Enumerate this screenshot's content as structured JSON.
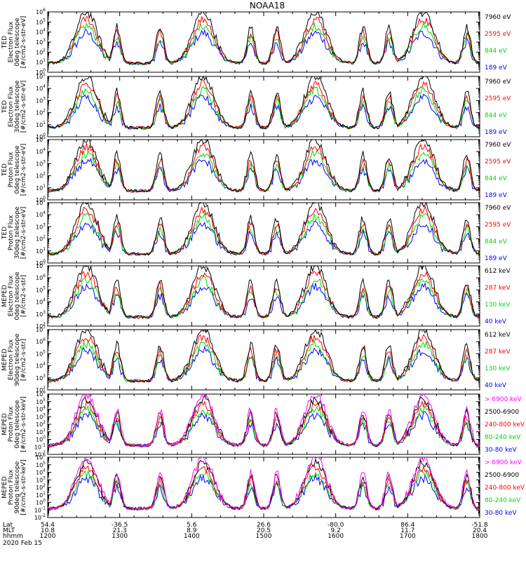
{
  "chart_data": {
    "type": "line",
    "title": "NOAA18",
    "x_range_hhmm": [
      "1200",
      "1800"
    ],
    "x_ticks": [
      {
        "hhmm": "1200",
        "lat": "54.4",
        "mlt": "10.8"
      },
      {
        "hhmm": "1300",
        "lat": "-36.5",
        "mlt": "21.3"
      },
      {
        "hhmm": "1400",
        "lat": "5.6",
        "mlt": "8.9"
      },
      {
        "hhmm": "1500",
        "lat": "26.6",
        "mlt": "20.5"
      },
      {
        "hhmm": "1600",
        "lat": "-80.0",
        "mlt": "9.2"
      },
      {
        "hhmm": "1700",
        "lat": "86.4",
        "mlt": "11.7"
      },
      {
        "hhmm": "1800",
        "lat": "-51.8",
        "mlt": "20.4"
      }
    ],
    "x_axis_row_labels": [
      "Lat",
      "MLT",
      "hhmm"
    ],
    "date": "2020 Feb 15",
    "panels": [
      {
        "ylabel": [
          "TED",
          "Electron Flux",
          "0deg telescope",
          "[#/cm2-s-str-eV]"
        ],
        "ylim_exp": [
          0,
          6
        ],
        "log_scale": true,
        "channels": [
          {
            "label": "7960 eV",
            "color": "#000000"
          },
          {
            "label": "2595 eV",
            "color": "#ff0000"
          },
          {
            "label": "844 eV",
            "color": "#00d800"
          },
          {
            "label": "189 eV",
            "color": "#0000ff"
          }
        ]
      },
      {
        "ylabel": [
          "TED",
          "Electron Flux",
          "30deg telescope",
          "[#/cm2-s-str-eV]"
        ],
        "ylim_exp": [
          0,
          5
        ],
        "log_scale": true,
        "channels": [
          {
            "label": "7960 eV",
            "color": "#000000"
          },
          {
            "label": "2595 eV",
            "color": "#ff0000"
          },
          {
            "label": "844 eV",
            "color": "#00d800"
          },
          {
            "label": "189 eV",
            "color": "#0000ff"
          }
        ]
      },
      {
        "ylabel": [
          "TED",
          "Proton Flux",
          "0deg telescope",
          "[#/cm2-s-str-eV]"
        ],
        "ylim_exp": [
          0,
          5
        ],
        "log_scale": true,
        "channels": [
          {
            "label": "7960 eV",
            "color": "#000000"
          },
          {
            "label": "2595 eV",
            "color": "#ff0000"
          },
          {
            "label": "844 eV",
            "color": "#00d800"
          },
          {
            "label": "189 eV",
            "color": "#0000ff"
          }
        ]
      },
      {
        "ylabel": [
          "TED",
          "Proton Flux",
          "30deg telescope",
          "[#/cm2-s-str-eV]"
        ],
        "ylim_exp": [
          0,
          5
        ],
        "log_scale": true,
        "channels": [
          {
            "label": "7960 eV",
            "color": "#000000"
          },
          {
            "label": "2595 eV",
            "color": "#ff0000"
          },
          {
            "label": "844 eV",
            "color": "#00d800"
          },
          {
            "label": "189 eV",
            "color": "#0000ff"
          }
        ]
      },
      {
        "ylabel": [
          "MEPED",
          "Electron Flux",
          "0deg telescope",
          "[#/cm2-s-str]"
        ],
        "ylim_exp": [
          2,
          7
        ],
        "log_scale": true,
        "channels": [
          {
            "label": "612 keV",
            "color": "#000000"
          },
          {
            "label": "287 keV",
            "color": "#ff0000"
          },
          {
            "label": "130 keV",
            "color": "#00d800"
          },
          {
            "label": "40 keV",
            "color": "#0000ff"
          }
        ]
      },
      {
        "ylabel": [
          "MEPED",
          "Electron Flux",
          "90deg telescope",
          "[#/cm2-s-str]"
        ],
        "ylim_exp": [
          2,
          7
        ],
        "log_scale": true,
        "channels": [
          {
            "label": "612 keV",
            "color": "#000000"
          },
          {
            "label": "287 keV",
            "color": "#ff0000"
          },
          {
            "label": "130 keV",
            "color": "#00d800"
          },
          {
            "label": "40 keV",
            "color": "#0000ff"
          }
        ]
      },
      {
        "ylabel": [
          "MEPED",
          "Proton Flux",
          "0deg telescope",
          "[#/cm2-s-str-keV]"
        ],
        "ylim_exp": [
          -2,
          6
        ],
        "log_scale": true,
        "channels": [
          {
            "label": "> 6900 keV",
            "color": "#ff00ff"
          },
          {
            "label": "2500-6900",
            "color": "#000000"
          },
          {
            "label": "240-800 keV",
            "color": "#ff0000"
          },
          {
            "label": "80-240 keV",
            "color": "#00d800"
          },
          {
            "label": "30-80 keV",
            "color": "#0000ff"
          }
        ]
      },
      {
        "ylabel": [
          "MEPED",
          "Proton Flux",
          "90deg telescope",
          "[#/cm2-s-str-keV]"
        ],
        "ylim_exp": [
          -2,
          6
        ],
        "log_scale": true,
        "channels": [
          {
            "label": "> 6900 keV",
            "color": "#ff00ff"
          },
          {
            "label": "2500-6900",
            "color": "#000000"
          },
          {
            "label": "240-800 keV",
            "color": "#ff0000"
          },
          {
            "label": "80-240 keV",
            "color": "#00d800"
          },
          {
            "label": "30-80 keV",
            "color": "#0000ff"
          }
        ]
      }
    ]
  }
}
